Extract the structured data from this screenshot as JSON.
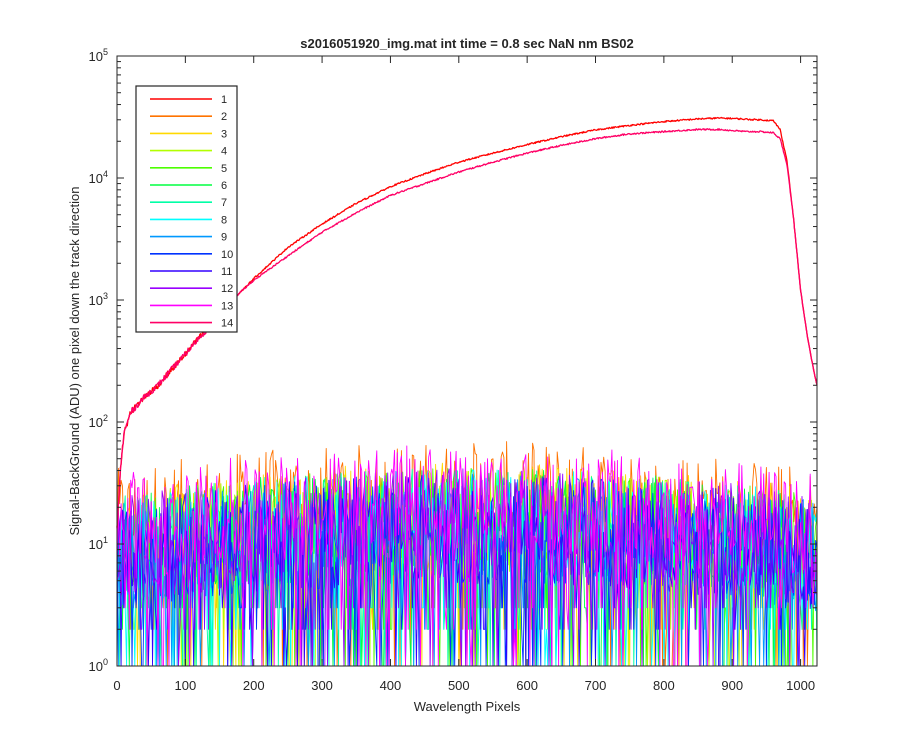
{
  "chart_data": {
    "type": "line",
    "title": "s2016051920_img.mat int time = 0.8 sec  NaN nm BS02",
    "xlabel": "Wavelength Pixels",
    "ylabel": "Signal-BackGround (ADU) one pixel down the track direction",
    "xlim": [
      0,
      1024
    ],
    "ylim": [
      1,
      100000
    ],
    "yscale": "log",
    "xticks": [
      0,
      100,
      200,
      300,
      400,
      500,
      600,
      700,
      800,
      900,
      1000
    ],
    "xtick_labels": [
      "0",
      "100",
      "200",
      "300",
      "400",
      "500",
      "600",
      "700",
      "800",
      "900",
      "1000"
    ],
    "yticks": [
      1,
      10,
      100,
      1000,
      10000,
      100000
    ],
    "ytick_labels": [
      {
        "base": "10",
        "exp": "0"
      },
      {
        "base": "10",
        "exp": "1"
      },
      {
        "base": "10",
        "exp": "2"
      },
      {
        "base": "10",
        "exp": "3"
      },
      {
        "base": "10",
        "exp": "4"
      },
      {
        "base": "10",
        "exp": "5"
      }
    ],
    "grid": false,
    "legend_position": "top-left",
    "series": [
      {
        "name": "1",
        "color": "#ff0000",
        "kind": "signal",
        "x": [
          0,
          5,
          10,
          20,
          40,
          60,
          80,
          100,
          120,
          140,
          160,
          180,
          200,
          250,
          300,
          350,
          400,
          450,
          500,
          550,
          600,
          650,
          700,
          750,
          800,
          850,
          880,
          900,
          920,
          940,
          960,
          970,
          980,
          990,
          1000,
          1010,
          1020,
          1024
        ],
        "values": [
          14,
          40,
          80,
          120,
          160,
          200,
          270,
          360,
          490,
          650,
          900,
          1150,
          1500,
          2700,
          4200,
          6200,
          8500,
          10800,
          13500,
          16000,
          18800,
          21800,
          24800,
          27000,
          29000,
          30500,
          31000,
          30800,
          30300,
          30000,
          29500,
          25000,
          14000,
          4500,
          1200,
          500,
          250,
          200
        ]
      },
      {
        "name": "2",
        "color": "#ff7300",
        "kind": "noise",
        "level": 30
      },
      {
        "name": "3",
        "color": "#ffd900",
        "kind": "noise",
        "level": 20
      },
      {
        "name": "4",
        "color": "#b3ff00",
        "kind": "noise",
        "level": 18
      },
      {
        "name": "5",
        "color": "#4dff00",
        "kind": "noise",
        "level": 18
      },
      {
        "name": "6",
        "color": "#00ff40",
        "kind": "noise",
        "level": 18
      },
      {
        "name": "7",
        "color": "#00ffa6",
        "kind": "noise",
        "level": 18
      },
      {
        "name": "8",
        "color": "#00ffff",
        "kind": "noise",
        "level": 18
      },
      {
        "name": "9",
        "color": "#0099ff",
        "kind": "noise",
        "level": 16
      },
      {
        "name": "10",
        "color": "#0033ff",
        "kind": "noise",
        "level": 16
      },
      {
        "name": "11",
        "color": "#3300ff",
        "kind": "noise",
        "level": 16
      },
      {
        "name": "12",
        "color": "#9900ff",
        "kind": "noise",
        "level": 18
      },
      {
        "name": "13",
        "color": "#ff00ff",
        "kind": "noise",
        "level": 28
      },
      {
        "name": "14",
        "color": "#ff0066",
        "kind": "signal",
        "x": [
          0,
          5,
          10,
          20,
          40,
          60,
          80,
          100,
          120,
          140,
          160,
          180,
          200,
          250,
          300,
          350,
          400,
          450,
          500,
          550,
          600,
          650,
          700,
          750,
          800,
          850,
          880,
          900,
          920,
          940,
          960,
          970,
          980,
          990,
          1000,
          1010,
          1020,
          1024
        ],
        "values": [
          14,
          40,
          80,
          120,
          160,
          200,
          270,
          360,
          490,
          650,
          900,
          1150,
          1450,
          2300,
          3600,
          5200,
          7200,
          9000,
          11200,
          13500,
          16000,
          18500,
          21000,
          23000,
          24000,
          25000,
          25000,
          24500,
          24000,
          24000,
          23500,
          21000,
          13000,
          4500,
          1200,
          500,
          250,
          200
        ]
      }
    ]
  }
}
